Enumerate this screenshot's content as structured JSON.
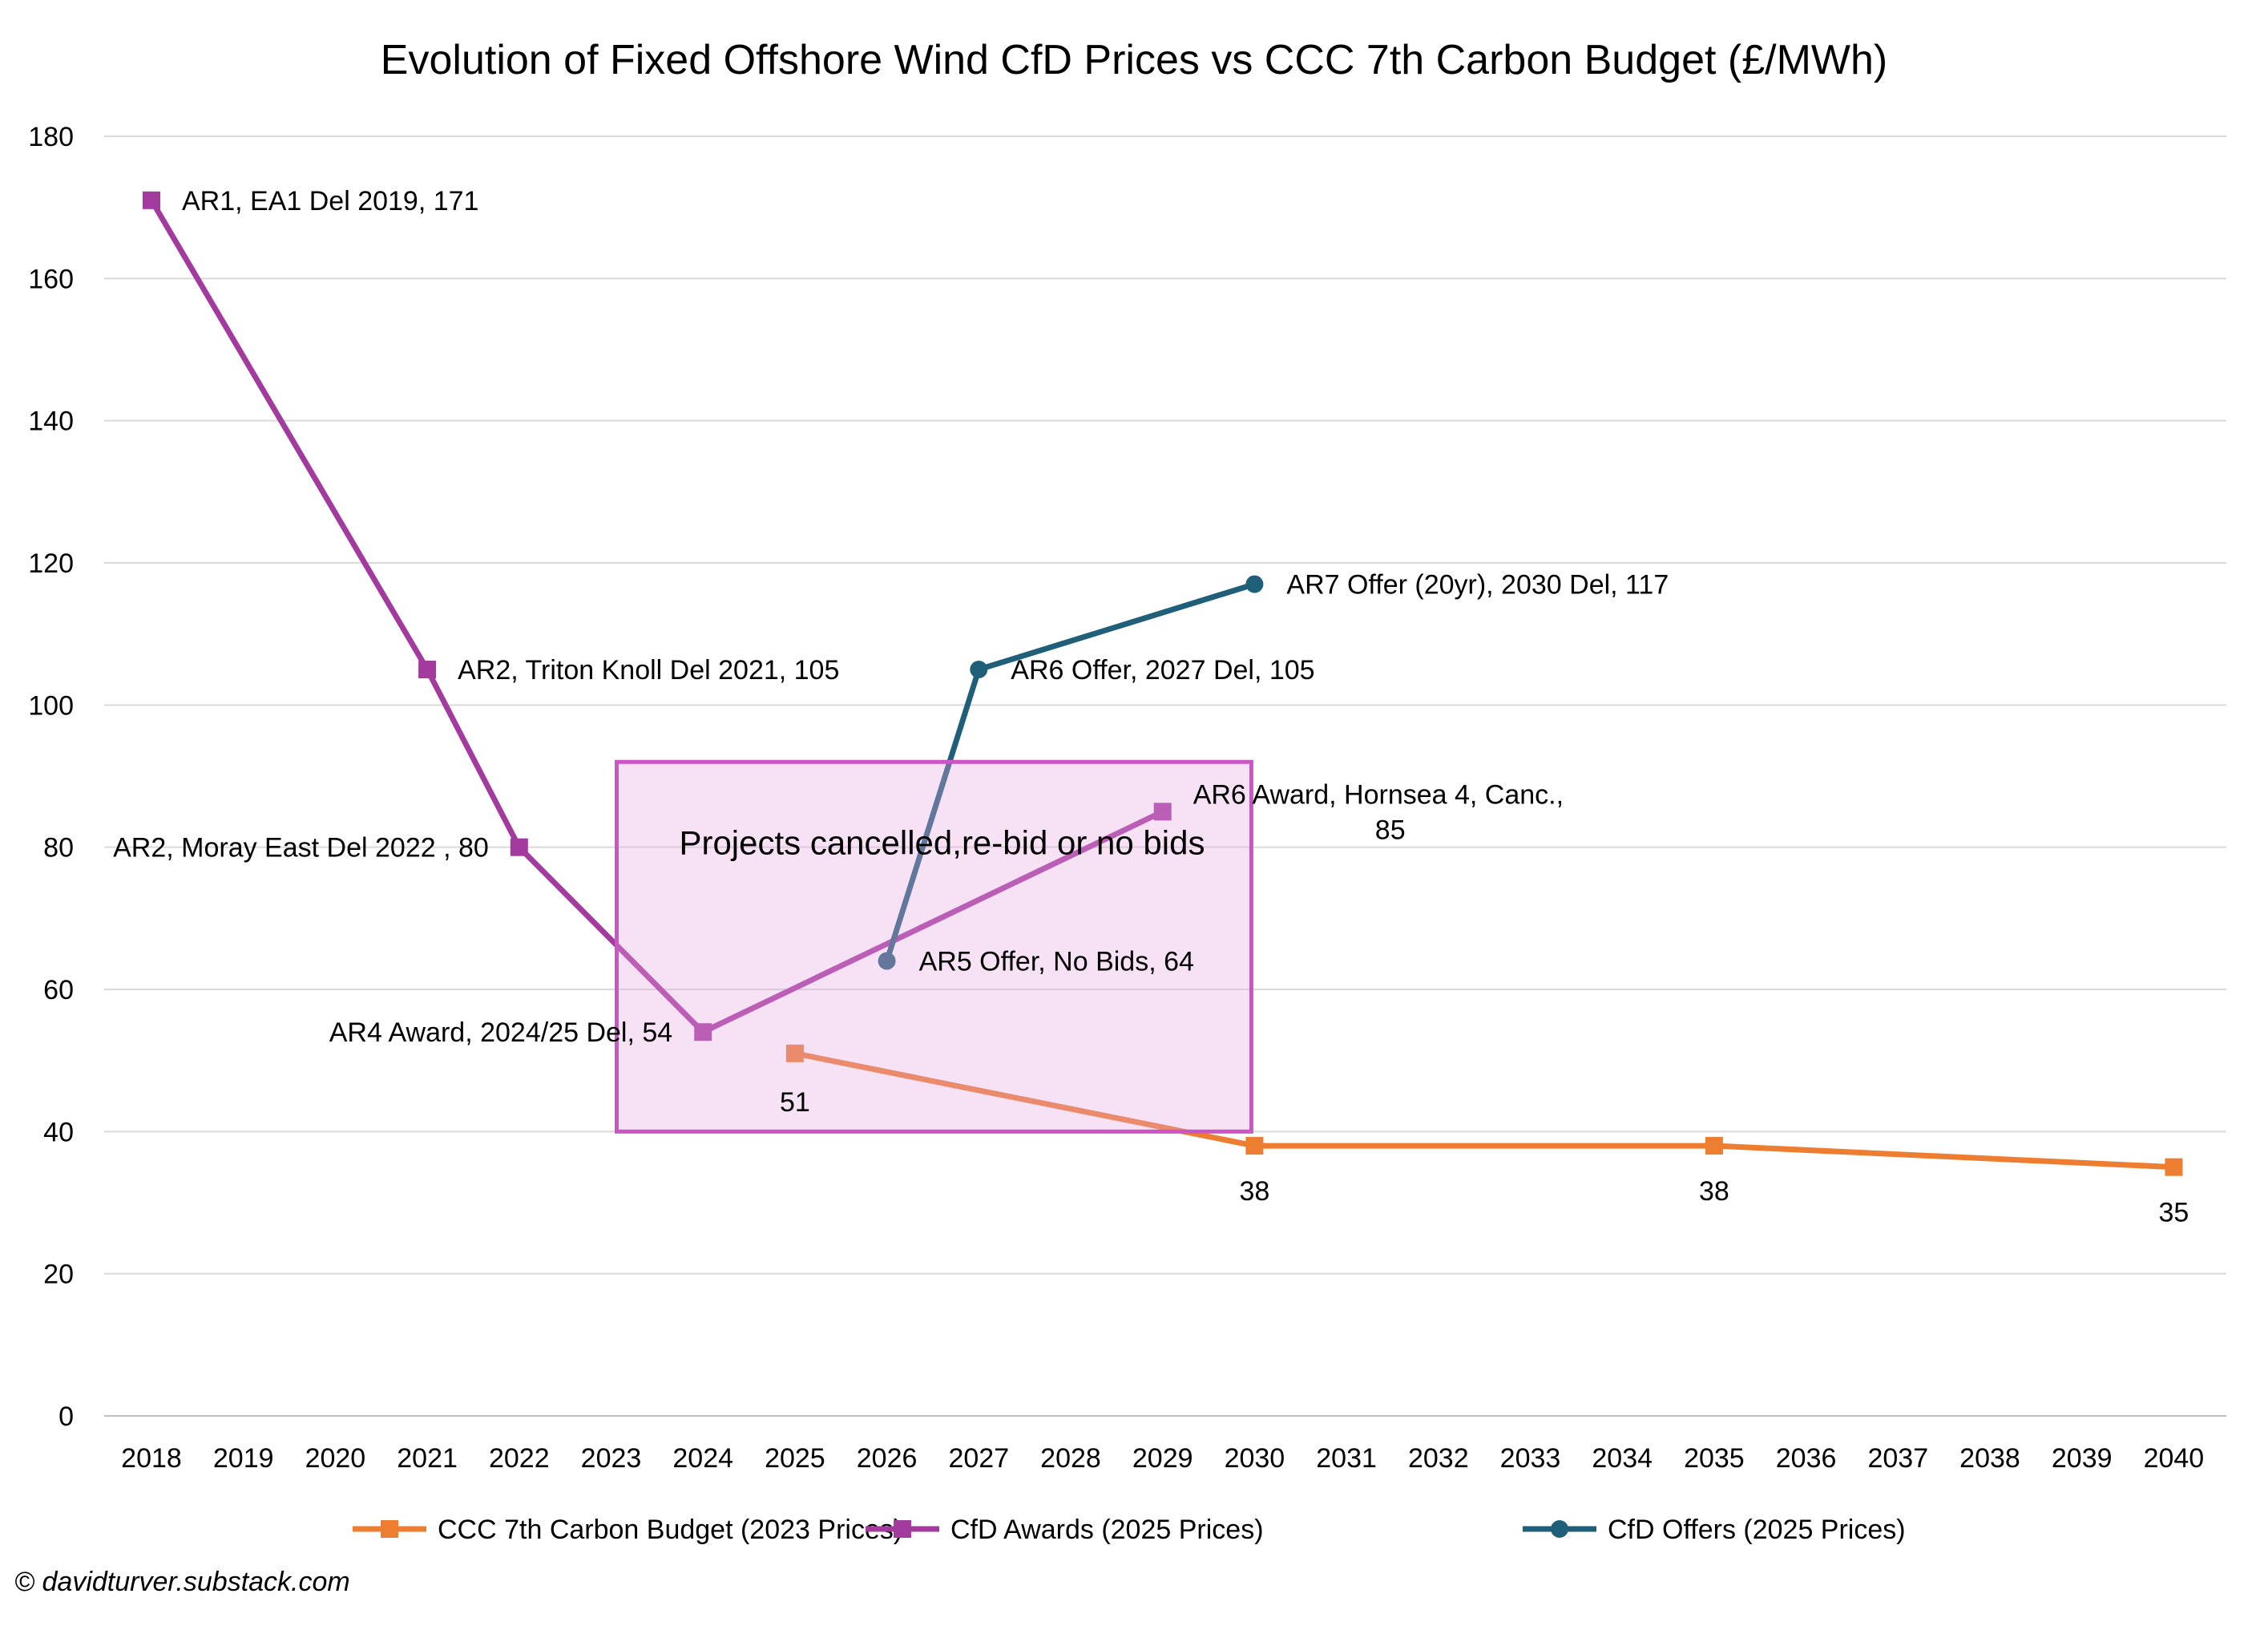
{
  "chart_data": {
    "type": "line",
    "title": "Evolution of Fixed Offshore Wind CfD Prices vs CCC 7th Carbon Budget (£/MWh)",
    "xlabel": "",
    "ylabel": "",
    "ylim": [
      0,
      180
    ],
    "y_ticks": [
      0,
      20,
      40,
      60,
      80,
      100,
      120,
      140,
      160,
      180
    ],
    "categories": [
      "2018",
      "2019",
      "2020",
      "2021",
      "2022",
      "2023",
      "2024",
      "2025",
      "2026",
      "2027",
      "2028",
      "2029",
      "2030",
      "2031",
      "2032",
      "2033",
      "2034",
      "2035",
      "2036",
      "2037",
      "2038",
      "2039",
      "2040"
    ],
    "grid": "horizontal",
    "legend_position": "bottom",
    "series": [
      {
        "name": "CCC 7th Carbon Budget (2023 Prices)",
        "color": "#ED7D31",
        "marker": "square",
        "points": [
          {
            "x": "2025",
            "y": 51,
            "label": "51"
          },
          {
            "x": "2030",
            "y": 38,
            "label": "38"
          },
          {
            "x": "2035",
            "y": 38,
            "label": "38"
          },
          {
            "x": "2040",
            "y": 35,
            "label": "35"
          }
        ]
      },
      {
        "name": "CfD Awards (2025 Prices)",
        "color": "#A33A9E",
        "marker": "square",
        "points": [
          {
            "x": "2018",
            "y": 171,
            "label": "AR1, EA1 Del 2019,  171"
          },
          {
            "x": "2021",
            "y": 105,
            "label": "AR2, Triton Knoll Del 2021,  105"
          },
          {
            "x": "2022",
            "y": 80,
            "label": "AR2, Moray East Del 2022 ,  80"
          },
          {
            "x": "2024",
            "y": 54,
            "label": "AR4 Award, 2024/25 Del,  54"
          },
          {
            "x": "2029",
            "y": 85,
            "label_lines": [
              "AR6 Award, Hornsea 4, Canc.,",
              "85"
            ]
          }
        ]
      },
      {
        "name": "CfD Offers (2025 Prices)",
        "color": "#1F5F7A",
        "marker": "circle",
        "points": [
          {
            "x": "2026",
            "y": 64,
            "label": "AR5 Offer, No Bids,  64"
          },
          {
            "x": "2027",
            "y": 105,
            "label": "AR6 Offer, 2027 Del,  105"
          },
          {
            "x": "2030",
            "y": 117,
            "label": "AR7 Offer (20yr), 2030 Del,  117"
          }
        ]
      }
    ],
    "annotations": [
      {
        "text": "Projects cancelled,re-bid or no bids",
        "x_range": [
          "2023",
          "2030"
        ],
        "y_range": [
          40,
          92
        ],
        "fill": "#E8A8E3",
        "border": "#CC55C6"
      }
    ]
  },
  "footer": {
    "credit": "© davidturver.substack.com"
  }
}
